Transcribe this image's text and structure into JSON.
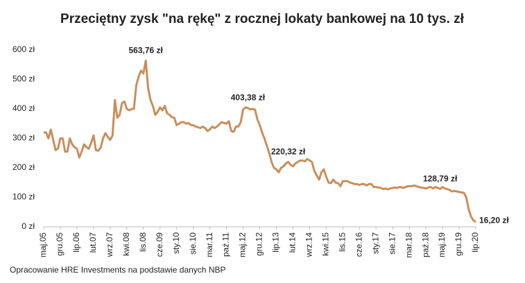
{
  "chart_data": {
    "type": "line",
    "title": "Przeciętny zysk \"na rękę\" z rocznej lokaty bankowej na 10 tys. zł",
    "source": "Opracowanie HRE Investments na podstawie danych NBP",
    "categories": [
      "maj.05",
      null,
      null,
      null,
      null,
      null,
      null,
      "gru.05",
      null,
      null,
      null,
      null,
      null,
      null,
      "lip.06",
      null,
      null,
      null,
      null,
      null,
      null,
      "lut.07",
      null,
      null,
      null,
      null,
      null,
      null,
      "wrz.07",
      null,
      null,
      null,
      null,
      null,
      null,
      "kwi.08",
      null,
      null,
      null,
      null,
      null,
      null,
      "lis.08",
      null,
      null,
      null,
      null,
      null,
      null,
      "cze.09",
      null,
      null,
      null,
      null,
      null,
      null,
      "sty.10",
      null,
      null,
      null,
      null,
      null,
      null,
      "sie.10",
      null,
      null,
      null,
      null,
      null,
      null,
      "mar.11",
      null,
      null,
      null,
      null,
      null,
      null,
      "paź.11",
      null,
      null,
      null,
      null,
      null,
      null,
      "maj.12",
      null,
      null,
      null,
      null,
      null,
      null,
      "gru.12",
      null,
      null,
      null,
      null,
      null,
      null,
      "lip.13",
      null,
      null,
      null,
      null,
      null,
      null,
      "lut.14",
      null,
      null,
      null,
      null,
      null,
      null,
      "wrz.14",
      null,
      null,
      null,
      null,
      null,
      null,
      "kwi.15",
      null,
      null,
      null,
      null,
      null,
      null,
      "lis.15",
      null,
      null,
      null,
      null,
      null,
      null,
      "cze.16",
      null,
      null,
      null,
      null,
      null,
      null,
      "sty.17",
      null,
      null,
      null,
      null,
      null,
      null,
      "sie.17",
      null,
      null,
      null,
      null,
      null,
      null,
      "mar.18",
      null,
      null,
      null,
      null,
      null,
      null,
      "paź.18",
      null,
      null,
      null,
      null,
      null,
      null,
      "maj.19",
      null,
      null,
      null,
      null,
      null,
      null,
      "gru.19",
      null,
      null,
      null,
      null,
      null,
      null,
      "lip.20"
    ],
    "values": [
      320,
      320,
      300,
      330,
      295,
      260,
      265,
      300,
      300,
      255,
      255,
      300,
      280,
      270,
      265,
      235,
      255,
      280,
      270,
      265,
      285,
      310,
      260,
      258,
      268,
      300,
      318,
      305,
      295,
      310,
      430,
      370,
      380,
      420,
      425,
      400,
      395,
      400,
      400,
      480,
      510,
      530,
      520,
      563.76,
      470,
      430,
      410,
      380,
      390,
      405,
      395,
      410,
      385,
      380,
      372,
      370,
      345,
      350,
      355,
      355,
      350,
      352,
      345,
      345,
      340,
      338,
      335,
      340,
      335,
      325,
      330,
      340,
      335,
      340,
      348,
      355,
      352,
      350,
      358,
      325,
      322,
      340,
      340,
      355,
      398,
      405,
      403.38,
      398,
      400,
      398,
      365,
      345,
      320,
      300,
      275,
      250,
      220,
      200,
      195,
      185,
      200,
      205,
      215,
      220.32,
      210,
      205,
      215,
      220,
      225,
      225,
      222,
      230,
      225,
      220,
      190,
      175,
      160,
      185,
      195,
      170,
      150,
      148,
      160,
      150,
      148,
      138,
      155,
      155,
      155,
      150,
      148,
      145,
      145,
      142,
      145,
      145,
      140,
      145,
      145,
      135,
      135,
      133,
      132,
      128,
      130,
      127,
      130,
      132,
      133,
      132,
      135,
      133,
      133,
      137,
      138,
      138,
      140,
      138,
      135,
      133,
      132,
      130,
      133,
      135,
      130,
      135,
      132,
      128.79,
      135,
      130,
      128,
      125,
      120,
      122,
      120,
      118,
      117,
      115,
      100,
      60,
      35,
      22,
      16.2
    ],
    "value_labels": [
      null,
      null,
      null,
      null,
      null,
      null,
      null,
      null,
      null,
      null,
      null,
      null,
      null,
      null,
      null,
      null,
      null,
      null,
      null,
      null,
      null,
      null,
      null,
      null,
      null,
      null,
      null,
      null,
      null,
      null,
      null,
      null,
      null,
      null,
      null,
      null,
      null,
      null,
      null,
      null,
      null,
      null,
      null,
      "563,76 zł",
      null,
      null,
      null,
      null,
      null,
      null,
      null,
      null,
      null,
      null,
      null,
      null,
      null,
      null,
      null,
      null,
      null,
      null,
      null,
      null,
      null,
      null,
      null,
      null,
      null,
      null,
      null,
      null,
      null,
      null,
      null,
      null,
      null,
      null,
      null,
      null,
      null,
      null,
      null,
      null,
      null,
      null,
      "403,38 zł",
      null,
      null,
      null,
      null,
      null,
      null,
      null,
      null,
      null,
      null,
      null,
      null,
      null,
      null,
      null,
      null,
      "220,32 zł",
      null,
      null,
      null,
      null,
      null,
      null,
      null,
      null,
      null,
      null,
      null,
      null,
      null,
      null,
      null,
      null,
      null,
      null,
      null,
      null,
      null,
      null,
      null,
      null,
      null,
      null,
      null,
      null,
      null,
      null,
      null,
      null,
      null,
      null,
      null,
      null,
      null,
      null,
      null,
      null,
      null,
      null,
      null,
      null,
      null,
      null,
      null,
      null,
      null,
      null,
      null,
      null,
      null,
      null,
      null,
      null,
      null,
      null,
      null,
      null,
      null,
      null,
      null,
      "128,79 zł",
      null,
      null,
      null,
      null,
      null,
      null,
      null,
      null,
      null,
      null,
      null,
      null,
      null,
      null,
      "16,20 zł"
    ],
    "color": "#c98e5a",
    "ylim": [
      0,
      600
    ],
    "yticks": [
      {
        "value": 0,
        "label": "0 zł"
      },
      {
        "value": 100,
        "label": "100 zł"
      },
      {
        "value": 200,
        "label": "200 zł"
      },
      {
        "value": 300,
        "label": "300 zł"
      },
      {
        "value": 400,
        "label": "400 zł"
      },
      {
        "value": 500,
        "label": "500 zł"
      },
      {
        "value": 600,
        "label": "600 zł"
      }
    ],
    "grid": false
  }
}
